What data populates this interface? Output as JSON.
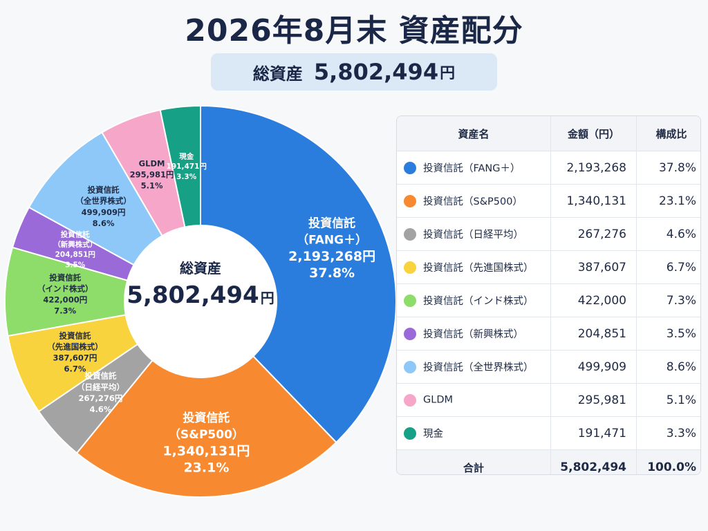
{
  "title": "2026年8月末 資産配分",
  "total_box": {
    "label": "総資産",
    "value": "5,802,494",
    "unit": "円"
  },
  "center": {
    "label": "総資産",
    "value": "5,802,494",
    "unit": "円"
  },
  "table": {
    "headers": [
      "資産名",
      "金額（円）",
      "構成比"
    ],
    "total_row": {
      "label": "合計",
      "amount": "5,802,494",
      "percent": "100.0%"
    }
  },
  "chart_data": {
    "type": "pie",
    "title": "2026年8月末 資産配分",
    "total": 5802494,
    "slices": [
      {
        "name": "投資信託（FANG＋）",
        "chart_label": [
          "投資信託",
          "（FANG＋）"
        ],
        "value": 2193268,
        "amount": "2,193,268",
        "chart_amount": "2,193,268円",
        "percent": "37.8%",
        "color": "#2a7ddc"
      },
      {
        "name": "投資信託（S&P500）",
        "chart_label": [
          "投資信託",
          "（S&P500）"
        ],
        "value": 1340131,
        "amount": "1,340,131",
        "chart_amount": "1,340,131円",
        "percent": "23.1%",
        "color": "#f78a30"
      },
      {
        "name": "投資信託（日経平均）",
        "chart_label": [
          "投資信託",
          "（日経平均）"
        ],
        "value": 267276,
        "amount": "267,276",
        "chart_amount": "267,276円",
        "percent": "4.6%",
        "color": "#a3a3a3"
      },
      {
        "name": "投資信託（先進国株式）",
        "chart_label": [
          "投資信託",
          "（先進国株式）"
        ],
        "value": 387607,
        "amount": "387,607",
        "chart_amount": "387,607円",
        "percent": "6.7%",
        "color": "#f9d33d"
      },
      {
        "name": "投資信託（インド株式）",
        "chart_label": [
          "投資信託",
          "（インド株式）"
        ],
        "value": 422000,
        "amount": "422,000",
        "chart_amount": "422,000円",
        "percent": "7.3%",
        "color": "#8edc6a"
      },
      {
        "name": "投資信託（新興株式）",
        "chart_label": [
          "投資信託",
          "（新興株式）"
        ],
        "value": 204851,
        "amount": "204,851",
        "chart_amount": "204,851円",
        "percent": "3.5%",
        "color": "#9b6ad9"
      },
      {
        "name": "投資信託（全世界株式）",
        "chart_label": [
          "投資信託",
          "（全世界株式）"
        ],
        "value": 499909,
        "amount": "499,909",
        "chart_amount": "499,909円",
        "percent": "8.6%",
        "color": "#8ec8f8"
      },
      {
        "name": "GLDM",
        "chart_label": [
          "GLDM"
        ],
        "value": 295981,
        "amount": "295,981",
        "chart_amount": "295,981円",
        "percent": "5.1%",
        "color": "#f6a6c8"
      },
      {
        "name": "現金",
        "chart_label": [
          "現金"
        ],
        "value": 191471,
        "amount": "191,471",
        "chart_amount": "191,471円",
        "percent": "3.3%",
        "color": "#16a085"
      }
    ]
  }
}
